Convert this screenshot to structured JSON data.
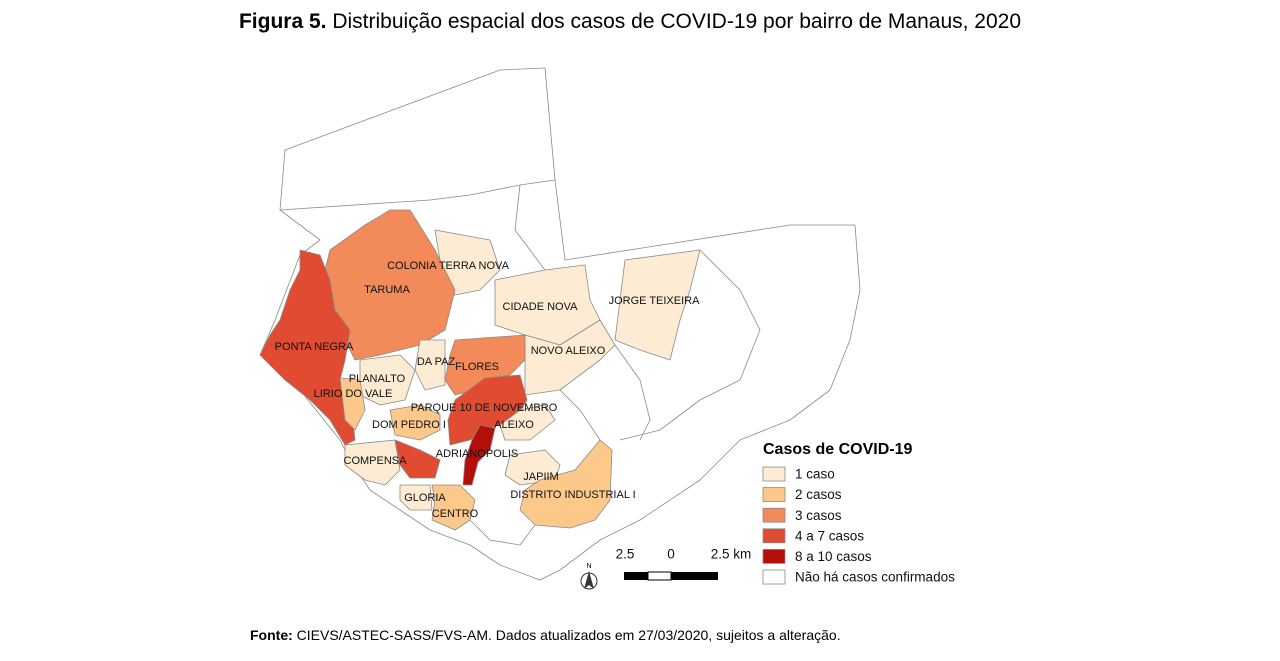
{
  "header": {
    "figure": "Figura 5.",
    "title": "Distribuição espacial dos casos de COVID-19 por bairro de Manaus, 2020"
  },
  "neighborhoods": [
    {
      "label": "COLONIA TERRA NOVA"
    },
    {
      "label": "TARUMA"
    },
    {
      "label": "CIDADE NOVA"
    },
    {
      "label": "JORGE TEIXEIRA"
    },
    {
      "label": "PONTA NEGRA"
    },
    {
      "label": "NOVO ALEIXO"
    },
    {
      "label": "DA PAZ"
    },
    {
      "label": "FLORES"
    },
    {
      "label": "PLANALTO"
    },
    {
      "label": "LIRIO DO VALE"
    },
    {
      "label": "PARQUE 10 DE NOVEMBRO"
    },
    {
      "label": "DOM PEDRO I"
    },
    {
      "label": "ALEIXO"
    },
    {
      "label": "ADRIANOPOLIS"
    },
    {
      "label": "COMPENSA"
    },
    {
      "label": "JAPIIM"
    },
    {
      "label": "DISTRITO INDUSTRIAL I"
    },
    {
      "label": "GLORIA"
    },
    {
      "label": "CENTRO"
    }
  ],
  "legend": {
    "title": "Casos de COVID-19",
    "items": [
      {
        "label": "1 caso",
        "color": "#fdebd3"
      },
      {
        "label": "2 casos",
        "color": "#fdc98a"
      },
      {
        "label": "3 casos",
        "color": "#f28b59"
      },
      {
        "label": "4 a 7 casos",
        "color": "#e04b31"
      },
      {
        "label": "8 a 10 casos",
        "color": "#b40f0a"
      },
      {
        "label": "Não há casos confirmados",
        "color": "#ffffff"
      }
    ]
  },
  "scale_bar": {
    "labels": [
      "2.5",
      "0",
      "2.5 km"
    ]
  },
  "north_arrow": {
    "label": "N"
  },
  "source": {
    "prefix": "Fonte:",
    "text": "CIEVS/ASTEC-SASS/FVS-AM. Dados atualizados em 27/03/2020, sujeitos a alteração."
  }
}
